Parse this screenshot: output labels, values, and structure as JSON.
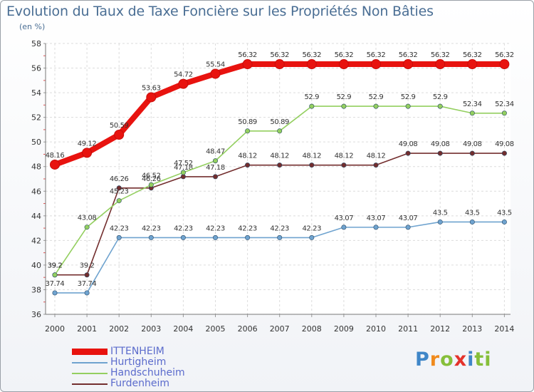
{
  "title": "Evolution du Taux de Taxe Foncière sur les Propriétés Non Bâties",
  "subtitle": "(en %)",
  "brand": {
    "letters": [
      "P",
      "r",
      "o",
      "x",
      "i",
      "t",
      "i"
    ]
  },
  "chart_data": {
    "type": "line",
    "title": "Evolution du Taux de Taxe Foncière sur les Propriétés Non Bâties",
    "ylabel": "(en %)",
    "xlabel": "",
    "x": [
      "2000",
      "2001",
      "2002",
      "2003",
      "2004",
      "2005",
      "2006",
      "2007",
      "2008",
      "2009",
      "2010",
      "2011",
      "2012",
      "2013",
      "2014"
    ],
    "ylim": [
      36,
      58
    ],
    "yticks": [
      "36",
      "38",
      "40",
      "42",
      "44",
      "46",
      "48",
      "50",
      "52",
      "54",
      "56",
      "58"
    ],
    "grid": true,
    "legend_position": "bottom-left",
    "series": [
      {
        "name": "ITTENHEIM",
        "color": "#e8130f",
        "values": [
          48.16,
          49.12,
          50.59,
          53.63,
          54.72,
          55.54,
          56.32,
          56.32,
          56.32,
          56.32,
          56.32,
          56.32,
          56.32,
          56.32,
          56.32
        ],
        "labels": [
          "48.16",
          "49.12",
          "50.59",
          "53.63",
          "54.72",
          "55.54",
          "56.32",
          "56.32",
          "56.32",
          "56.32",
          "56.32",
          "56.32",
          "56.32",
          "56.32",
          "56.32"
        ]
      },
      {
        "name": "Hurtigheim",
        "color": "#6fa3cf",
        "values": [
          37.74,
          37.74,
          42.23,
          42.23,
          42.23,
          42.23,
          42.23,
          42.23,
          42.23,
          43.07,
          43.07,
          43.07,
          43.5,
          43.5,
          43.5
        ],
        "labels": [
          "37.74",
          "37.74",
          "42.23",
          "42.23",
          "42.23",
          "42.23",
          "42.23",
          "42.23",
          "42.23",
          "43.07",
          "43.07",
          "43.07",
          "43.5",
          "43.5",
          "43.5"
        ]
      },
      {
        "name": "Handschuheim",
        "color": "#93cf5f",
        "values": [
          39.2,
          43.08,
          45.23,
          46.52,
          47.52,
          48.47,
          50.89,
          50.89,
          52.9,
          52.9,
          52.9,
          52.9,
          52.9,
          52.34,
          52.34
        ],
        "labels": [
          "39.2",
          "43.08",
          "45.23",
          "46.52",
          "47.52",
          "48.47",
          "50.89",
          "50.89",
          "52.9",
          "52.9",
          "52.9",
          "52.9",
          "52.9",
          "52.34",
          "52.34"
        ]
      },
      {
        "name": "Furdenheim",
        "color": "#732e2e",
        "values": [
          39.2,
          39.2,
          46.26,
          46.26,
          47.18,
          47.18,
          48.12,
          48.12,
          48.12,
          48.12,
          48.12,
          49.08,
          49.08,
          49.08,
          49.08
        ],
        "labels": [
          "39.2",
          "39.2",
          "46.26",
          "46.26",
          "47.18",
          "47.18",
          "48.12",
          "48.12",
          "48.12",
          "48.12",
          "48.12",
          "49.08",
          "49.08",
          "49.08",
          "49.08"
        ]
      }
    ]
  }
}
